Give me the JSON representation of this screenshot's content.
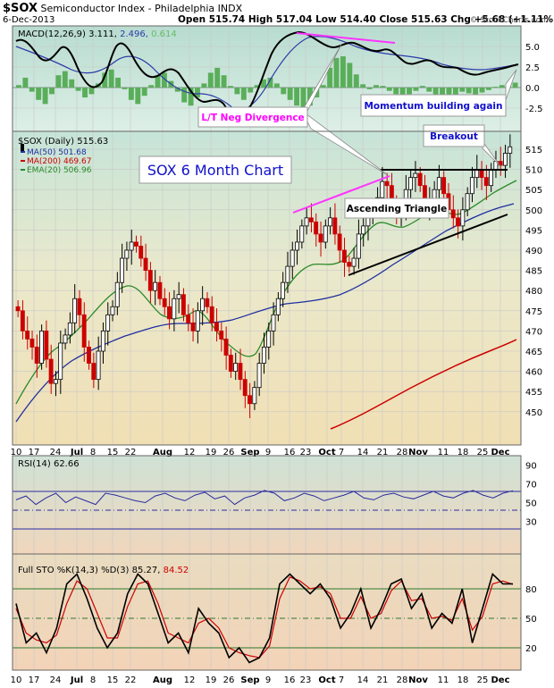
{
  "header": {
    "symbol": "$SOX",
    "name": "Semiconductor Index - Philadelphia INDX",
    "date": "6-Dec-2013",
    "ohlc": "Open 515.74  High 517.04  Low 514.40  Close 515.63  Chg +5.68 (+1.11%)",
    "credit": "© StockCharts.com"
  },
  "chart_data": [
    {
      "type": "line",
      "title": "MACD(12,26,9) 3.111, 2.496, 0.614",
      "ylim": [
        -3.5,
        6.5
      ],
      "yticks": [
        "5.0",
        "2.5",
        "0.0",
        "-2.5"
      ],
      "legend": {
        "macd_label": "MACD(12,26,9) 3.111,",
        "signal_value": "2.496,",
        "hist_value": "0.614"
      },
      "annotations": [
        "L/T Neg Divergence",
        "Momentum building again"
      ]
    },
    {
      "type": "bar",
      "title": "SOX 6 Month Chart",
      "ylim": [
        446,
        520
      ],
      "yticks": [
        "515",
        "510",
        "505",
        "500",
        "495",
        "490",
        "485",
        "480",
        "475",
        "470",
        "465",
        "460",
        "455",
        "450"
      ],
      "xlabels": [
        "10",
        "17",
        "24",
        "Jul",
        "8",
        "15",
        "22",
        "Aug",
        "12",
        "19",
        "26",
        "Sep",
        "9",
        "16",
        "23",
        "Oct",
        "7",
        "14",
        "21",
        "28",
        "Nov",
        "11",
        "18",
        "25",
        "Dec"
      ],
      "legend": [
        "$SOX (Daily) 515.63",
        "MA(50) 501.68",
        "MA(200) 469.67",
        "EMA(20) 506.96"
      ],
      "annotations": [
        "Breakout",
        "Ascending Triangle"
      ],
      "series": [
        {
          "name": "$SOX (Daily) 515.63",
          "color": "#cc0000"
        },
        {
          "name": "MA(50) 501.68",
          "color": "#1e2fa0",
          "values": [
            456,
            459,
            462,
            464,
            466,
            468,
            470,
            471.5,
            472,
            472,
            473,
            474,
            476,
            478,
            479,
            480,
            481,
            482,
            484,
            486,
            488,
            491,
            494,
            497,
            499,
            501.7
          ]
        },
        {
          "name": "MA(200) 469.67",
          "color": "#cc0000",
          "values": [
            448,
            449,
            451,
            453,
            455,
            457,
            459,
            461,
            463,
            465,
            467,
            469.7
          ]
        },
        {
          "name": "EMA(20) 506.96",
          "color": "#2a8a2a",
          "values": [
            462,
            466,
            468,
            473,
            478,
            477,
            472,
            470,
            467,
            462,
            467,
            476,
            484,
            489,
            492,
            491,
            494,
            497,
            496,
            499,
            502,
            498,
            500,
            504,
            507
          ]
        }
      ]
    },
    {
      "type": "line",
      "title": "RSI(14) 62.66",
      "ylim": [
        0,
        100
      ],
      "yticks": [
        "90",
        "70",
        "50",
        "30"
      ],
      "series": [
        {
          "name": "RSI(14) 62.66",
          "color": "#2a2aa0",
          "values": [
            53,
            57,
            48,
            55,
            60,
            50,
            56,
            52,
            48,
            60,
            58,
            55,
            52,
            50,
            57,
            60,
            55,
            52,
            58,
            61,
            54,
            57,
            48,
            55,
            58,
            63,
            60,
            52,
            55,
            60,
            57,
            52,
            55,
            58,
            62,
            55,
            53,
            58,
            60,
            56,
            54,
            58,
            62,
            57,
            55,
            60,
            63,
            58,
            55,
            60,
            62.66
          ]
        }
      ]
    },
    {
      "type": "line",
      "title": "Full STO %K(14,3) %D(3) 85.27, 84.52",
      "ylim": [
        0,
        100
      ],
      "yticks": [
        "80",
        "50",
        "20"
      ],
      "legend": {
        "label": "Full STO %K(14,3) %D(3) 85.27,",
        "d_value": "84.52"
      },
      "series": [
        {
          "name": "%K",
          "color": "#000000",
          "values": [
            65,
            25,
            35,
            15,
            40,
            85,
            95,
            70,
            40,
            20,
            35,
            75,
            95,
            85,
            55,
            25,
            35,
            15,
            60,
            45,
            35,
            10,
            20,
            5,
            10,
            30,
            85,
            95,
            85,
            75,
            85,
            70,
            40,
            55,
            80,
            40,
            60,
            85,
            90,
            60,
            75,
            40,
            55,
            45,
            80,
            25,
            60,
            95,
            85,
            85
          ]
        },
        {
          "name": "%D",
          "color": "#cc0000",
          "values": [
            60,
            35,
            28,
            25,
            33,
            65,
            88,
            80,
            55,
            30,
            30,
            62,
            85,
            88,
            65,
            35,
            30,
            25,
            45,
            50,
            40,
            20,
            15,
            12,
            10,
            22,
            70,
            92,
            88,
            80,
            82,
            75,
            50,
            50,
            72,
            50,
            55,
            78,
            88,
            68,
            70,
            50,
            52,
            48,
            70,
            38,
            52,
            85,
            88,
            84.5
          ]
        }
      ]
    }
  ]
}
